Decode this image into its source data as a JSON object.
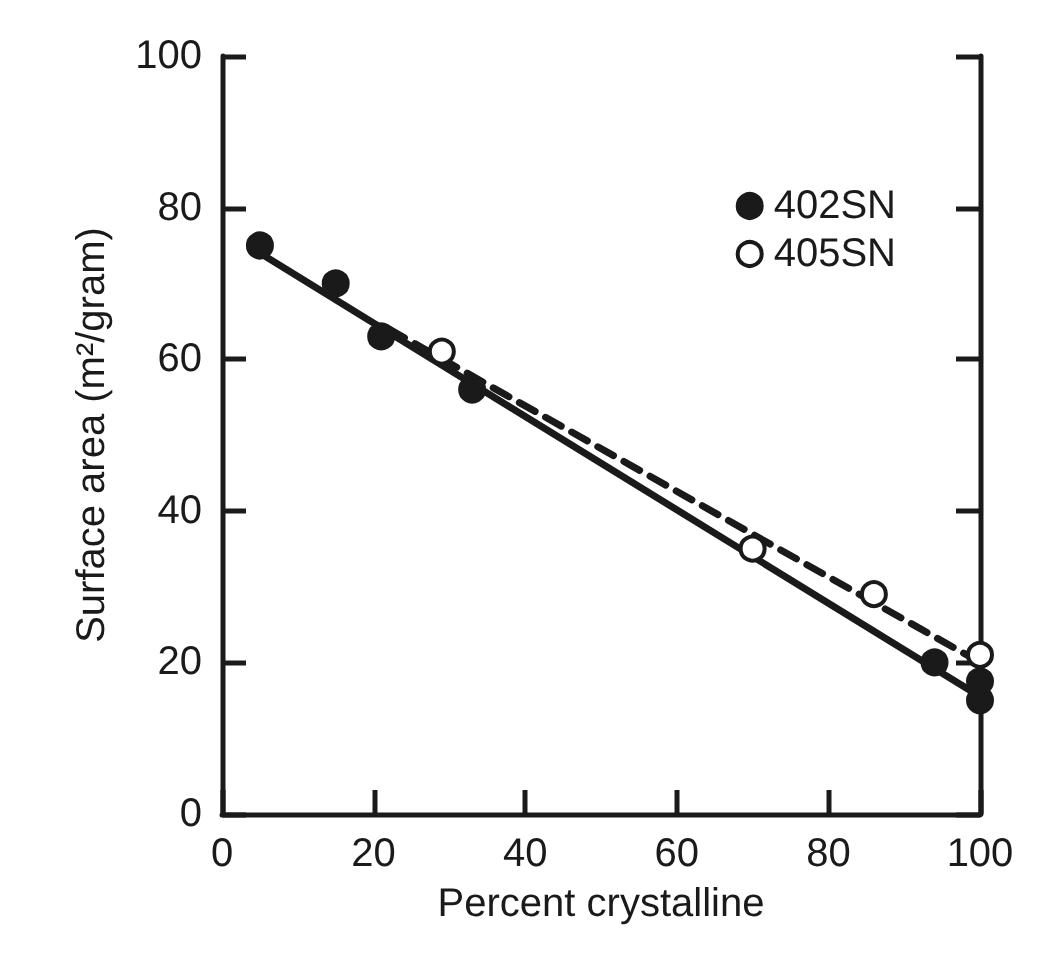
{
  "chart_data": {
    "type": "scatter",
    "xlabel": "Percent crystalline",
    "ylabel": "Surface area (m²/gram)",
    "xlim": [
      0,
      100
    ],
    "ylim": [
      0,
      100
    ],
    "xticks": [
      0,
      20,
      40,
      60,
      80,
      100
    ],
    "yticks": [
      0,
      20,
      40,
      60,
      80,
      100
    ],
    "grid": false,
    "legend": "top right",
    "series": [
      {
        "name": "402SN",
        "color": "#1a1a1a",
        "marker": "circle",
        "x": [
          5,
          15,
          21,
          33,
          94,
          100,
          100
        ],
        "values": [
          75,
          70,
          63,
          56,
          20,
          17.5,
          15
        ]
      },
      {
        "name": "405SN",
        "color": "#ffffff",
        "marker": "circle",
        "x": [
          29,
          70,
          86,
          100
        ],
        "values": [
          61,
          35,
          29,
          21
        ]
      },
      {
        "type": "line",
        "color": "#1a1a1a",
        "marker": "none",
        "line_style": "solid",
        "x": [
          5,
          100
        ],
        "values": [
          74,
          15.5
        ]
      },
      {
        "type": "line",
        "color": "#1a1a1a",
        "marker": "none",
        "line_style": "dashed",
        "x": [
          22,
          100
        ],
        "values": [
          64,
          20
        ]
      }
    ]
  }
}
